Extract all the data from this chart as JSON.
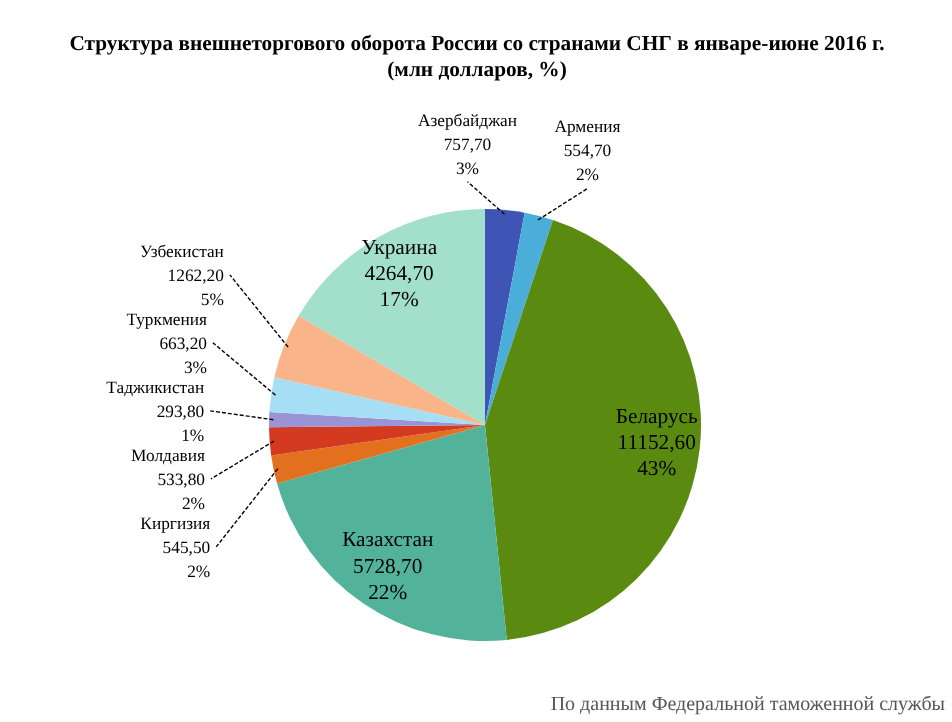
{
  "chart_data": {
    "type": "pie",
    "title": "Структура внешнеторгового оборота России со странами СНГ в январе-июне 2016 г.",
    "subtitle": "(млн долларов, %)",
    "categories": [
      "Азербайджан",
      "Армения",
      "Беларусь",
      "Казахстан",
      "Киргизия",
      "Молдавия",
      "Таджикистан",
      "Туркмения",
      "Узбекистан",
      "Украина"
    ],
    "values": [
      757.7,
      554.7,
      11152.6,
      5728.7,
      545.5,
      533.8,
      293.8,
      663.2,
      1262.2,
      4264.7
    ],
    "value_labels": [
      "757,70\n3%",
      "554,70\n2%",
      "11152,60\n43%",
      "5728,70\n22%",
      "545,50\n2%",
      "533,80\n2%",
      "293,80\n1%",
      "663,20\n3%",
      "1262,20\n5%",
      "4264,70\n17%"
    ],
    "colors": [
      "#3f55b5",
      "#4aaed8",
      "#5a8a10",
      "#52b39a",
      "#e3701f",
      "#d43a1f",
      "#9a94d6",
      "#a6dff5",
      "#f9b48a",
      "#a3e0cc"
    ],
    "annotations": [
      "По данным Федеральной таможенной службы"
    ]
  }
}
